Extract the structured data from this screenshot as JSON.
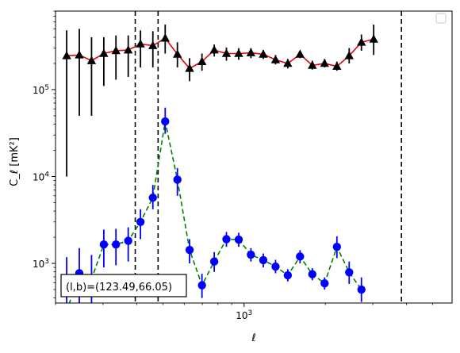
{
  "chart_data": {
    "type": "scatter",
    "xscale": "log",
    "yscale": "log",
    "xlim": [
      200,
      5900
    ],
    "ylim": [
      350,
      800000
    ],
    "xlabel": "ℓ",
    "ylabel": "C_ℓ  [mK²]",
    "x_tick_labels": [
      {
        "value": 1000,
        "base": "10",
        "exp": "3"
      }
    ],
    "y_tick_labels": [
      {
        "value": 1000,
        "base": "10",
        "exp": "3"
      },
      {
        "value": 10000,
        "base": "10",
        "exp": "4"
      },
      {
        "value": 100000,
        "base": "10",
        "exp": "5"
      }
    ],
    "annotation": "(l,b)=(123.49,66.05)",
    "legend": {
      "placement": "top-right",
      "entries": []
    },
    "vlines": [
      {
        "x": 395,
        "color": "#000000",
        "style": "dashed"
      },
      {
        "x": 480,
        "color": "#000000",
        "style": "dashed"
      },
      {
        "x": 3830,
        "color": "#000000",
        "style": "dashed"
      }
    ],
    "series": [
      {
        "marker": "triangle",
        "color": "#000000",
        "line_color": "#e8000b",
        "line_style": "solid",
        "points": [
          {
            "x": 220,
            "y": 245000,
            "lo": 10000,
            "hi": 480000
          },
          {
            "x": 245,
            "y": 250000,
            "lo": 50000,
            "hi": 500000
          },
          {
            "x": 272,
            "y": 215000,
            "lo": 50000,
            "hi": 400000
          },
          {
            "x": 302,
            "y": 260000,
            "lo": 110000,
            "hi": 400000
          },
          {
            "x": 335,
            "y": 280000,
            "lo": 130000,
            "hi": 420000
          },
          {
            "x": 372,
            "y": 285000,
            "lo": 140000,
            "hi": 420000
          },
          {
            "x": 413,
            "y": 335000,
            "lo": 180000,
            "hi": 480000
          },
          {
            "x": 459,
            "y": 320000,
            "lo": 180000,
            "hi": 470000
          },
          {
            "x": 510,
            "y": 390000,
            "lo": 260000,
            "hi": 560000
          },
          {
            "x": 566,
            "y": 255000,
            "lo": 180000,
            "hi": 350000
          },
          {
            "x": 628,
            "y": 175000,
            "lo": 125000,
            "hi": 230000
          },
          {
            "x": 698,
            "y": 210000,
            "lo": 165000,
            "hi": 260000
          },
          {
            "x": 775,
            "y": 285000,
            "lo": 240000,
            "hi": 330000
          },
          {
            "x": 860,
            "y": 260000,
            "lo": 215000,
            "hi": 305000
          },
          {
            "x": 955,
            "y": 260000,
            "lo": 220000,
            "hi": 300000
          },
          {
            "x": 1060,
            "y": 265000,
            "lo": 230000,
            "hi": 300000
          },
          {
            "x": 1178,
            "y": 255000,
            "lo": 225000,
            "hi": 285000
          },
          {
            "x": 1308,
            "y": 220000,
            "lo": 195000,
            "hi": 250000
          },
          {
            "x": 1452,
            "y": 200000,
            "lo": 175000,
            "hi": 225000
          },
          {
            "x": 1612,
            "y": 255000,
            "lo": 230000,
            "hi": 280000
          },
          {
            "x": 1790,
            "y": 190000,
            "lo": 170000,
            "hi": 215000
          },
          {
            "x": 1988,
            "y": 200000,
            "lo": 180000,
            "hi": 225000
          },
          {
            "x": 2208,
            "y": 185000,
            "lo": 165000,
            "hi": 210000
          },
          {
            "x": 2452,
            "y": 245000,
            "lo": 200000,
            "hi": 300000
          },
          {
            "x": 2722,
            "y": 350000,
            "lo": 280000,
            "hi": 430000
          },
          {
            "x": 3022,
            "y": 380000,
            "lo": 250000,
            "hi": 560000
          }
        ]
      },
      {
        "marker": "circle",
        "color": "#0000ff",
        "line_color": "#008000",
        "line_style": "dashed",
        "points": [
          {
            "x": 220,
            "y": 280,
            "lo": 150,
            "hi": 1180
          },
          {
            "x": 245,
            "y": 770,
            "lo": 300,
            "hi": 1500
          },
          {
            "x": 272,
            "y": 660,
            "lo": 250,
            "hi": 1250
          },
          {
            "x": 302,
            "y": 1650,
            "lo": 900,
            "hi": 2450
          },
          {
            "x": 335,
            "y": 1650,
            "lo": 950,
            "hi": 2500
          },
          {
            "x": 372,
            "y": 1820,
            "lo": 1050,
            "hi": 2600
          },
          {
            "x": 413,
            "y": 3000,
            "lo": 1900,
            "hi": 4200
          },
          {
            "x": 459,
            "y": 5700,
            "lo": 4200,
            "hi": 8000
          },
          {
            "x": 510,
            "y": 43000,
            "lo": 31000,
            "hi": 62000
          },
          {
            "x": 566,
            "y": 9200,
            "lo": 6000,
            "hi": 12500
          },
          {
            "x": 628,
            "y": 1430,
            "lo": 1000,
            "hi": 1900
          },
          {
            "x": 698,
            "y": 560,
            "lo": 400,
            "hi": 760
          },
          {
            "x": 775,
            "y": 1050,
            "lo": 800,
            "hi": 1350
          },
          {
            "x": 860,
            "y": 1900,
            "lo": 1550,
            "hi": 2300
          },
          {
            "x": 955,
            "y": 1880,
            "lo": 1550,
            "hi": 2250
          },
          {
            "x": 1060,
            "y": 1260,
            "lo": 1050,
            "hi": 1500
          },
          {
            "x": 1178,
            "y": 1090,
            "lo": 900,
            "hi": 1300
          },
          {
            "x": 1308,
            "y": 920,
            "lo": 770,
            "hi": 1100
          },
          {
            "x": 1452,
            "y": 730,
            "lo": 620,
            "hi": 860
          },
          {
            "x": 1612,
            "y": 1200,
            "lo": 1000,
            "hi": 1420
          },
          {
            "x": 1790,
            "y": 750,
            "lo": 640,
            "hi": 880
          },
          {
            "x": 1988,
            "y": 590,
            "lo": 500,
            "hi": 690
          },
          {
            "x": 2208,
            "y": 1550,
            "lo": 1150,
            "hi": 2050
          },
          {
            "x": 2452,
            "y": 790,
            "lo": 580,
            "hi": 1050
          },
          {
            "x": 2722,
            "y": 500,
            "lo": 360,
            "hi": 690
          }
        ]
      }
    ]
  }
}
